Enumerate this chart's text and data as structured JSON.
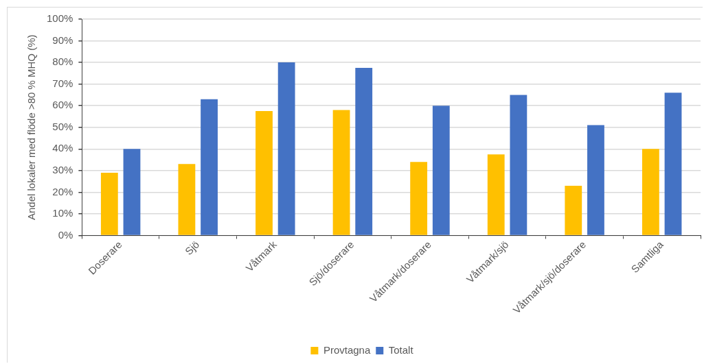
{
  "chart_data": {
    "type": "bar",
    "ylabel": "Andel lokaler med flöde >80 % MHQ (%)",
    "categories": [
      "Doserare",
      "Sjö",
      "Våtmark",
      "Sjö/doserare",
      "Våtmark/doserare",
      "Våtmark/sjö",
      "Våtmark/sjö/doserare",
      "Samtliga"
    ],
    "series": [
      {
        "name": "Provtagna",
        "color": "#ffc000",
        "values": [
          29,
          33,
          57.5,
          58,
          34,
          37.5,
          23,
          40
        ]
      },
      {
        "name": "Totalt",
        "color": "#4472c4",
        "values": [
          40,
          63,
          80,
          77.5,
          60,
          65,
          51,
          66
        ]
      }
    ],
    "ylim": [
      0,
      100
    ],
    "yticks": [
      {
        "value": 0,
        "label": "0%"
      },
      {
        "value": 10,
        "label": "10%"
      },
      {
        "value": 20,
        "label": "20%"
      },
      {
        "value": 30,
        "label": "30%"
      },
      {
        "value": 40,
        "label": "40%"
      },
      {
        "value": 50,
        "label": "50%"
      },
      {
        "value": 60,
        "label": "60%"
      },
      {
        "value": 70,
        "label": "70%"
      },
      {
        "value": 80,
        "label": "80%"
      },
      {
        "value": 90,
        "label": "90%"
      },
      {
        "value": 100,
        "label": "100%"
      }
    ],
    "grid": "y",
    "legend": "bottom"
  }
}
